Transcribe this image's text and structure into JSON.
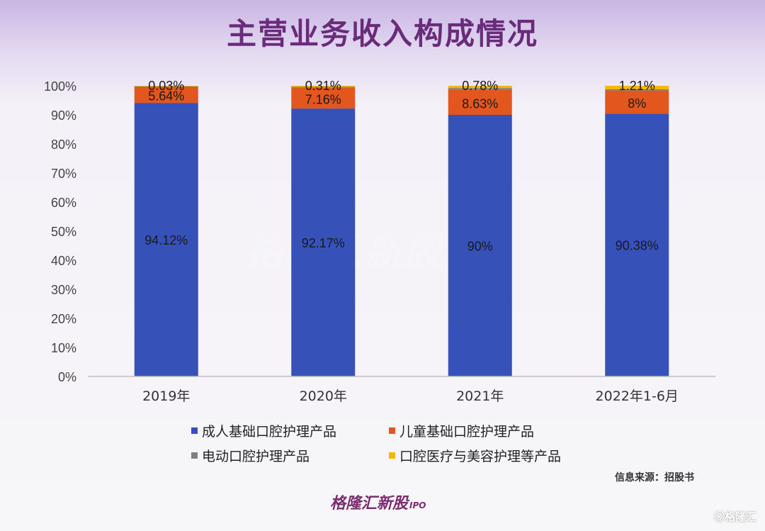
{
  "title": "主营业务收入构成情况",
  "source": "信息来源：招股书",
  "watermark": "格隆汇新股",
  "watermark_suffix": "IPO",
  "corner_logo": "ⓖ格隆汇",
  "colors": {
    "adult": "#3651b8",
    "child": "#e3571e",
    "electric": "#7f7f7f",
    "medical": "#f5b800"
  },
  "chart_data": {
    "type": "bar",
    "stacked": true,
    "categories": [
      "2019年",
      "2020年",
      "2021年",
      "2022年1-6月"
    ],
    "series": [
      {
        "name": "成人基础口腔护理产品",
        "values": [
          94.12,
          92.17,
          90,
          90.38
        ],
        "labels": [
          "94.12%",
          "92.17%",
          "90%",
          "90.38%"
        ]
      },
      {
        "name": "儿童基础口腔护理产品",
        "values": [
          5.64,
          7.16,
          8.63,
          8
        ],
        "labels": [
          "5.64%",
          "7.16%",
          "8.63%",
          "8%"
        ]
      },
      {
        "name": "电动口腔护理产品",
        "values": [
          0.03,
          0.31,
          0.59,
          0.41
        ],
        "labels": [
          "0.03%",
          "0.31%",
          "",
          ""
        ]
      },
      {
        "name": "口腔医疗与美容护理等产品",
        "values": [
          0.21,
          0.36,
          0.78,
          1.21
        ],
        "labels": [
          "",
          "",
          "0.78%",
          "1.21%"
        ]
      }
    ],
    "y_ticks": [
      "0%",
      "10%",
      "20%",
      "30%",
      "40%",
      "50%",
      "60%",
      "70%",
      "80%",
      "90%",
      "100%"
    ],
    "ylim": [
      0,
      100
    ],
    "grid": false,
    "legend_position": "bottom"
  }
}
